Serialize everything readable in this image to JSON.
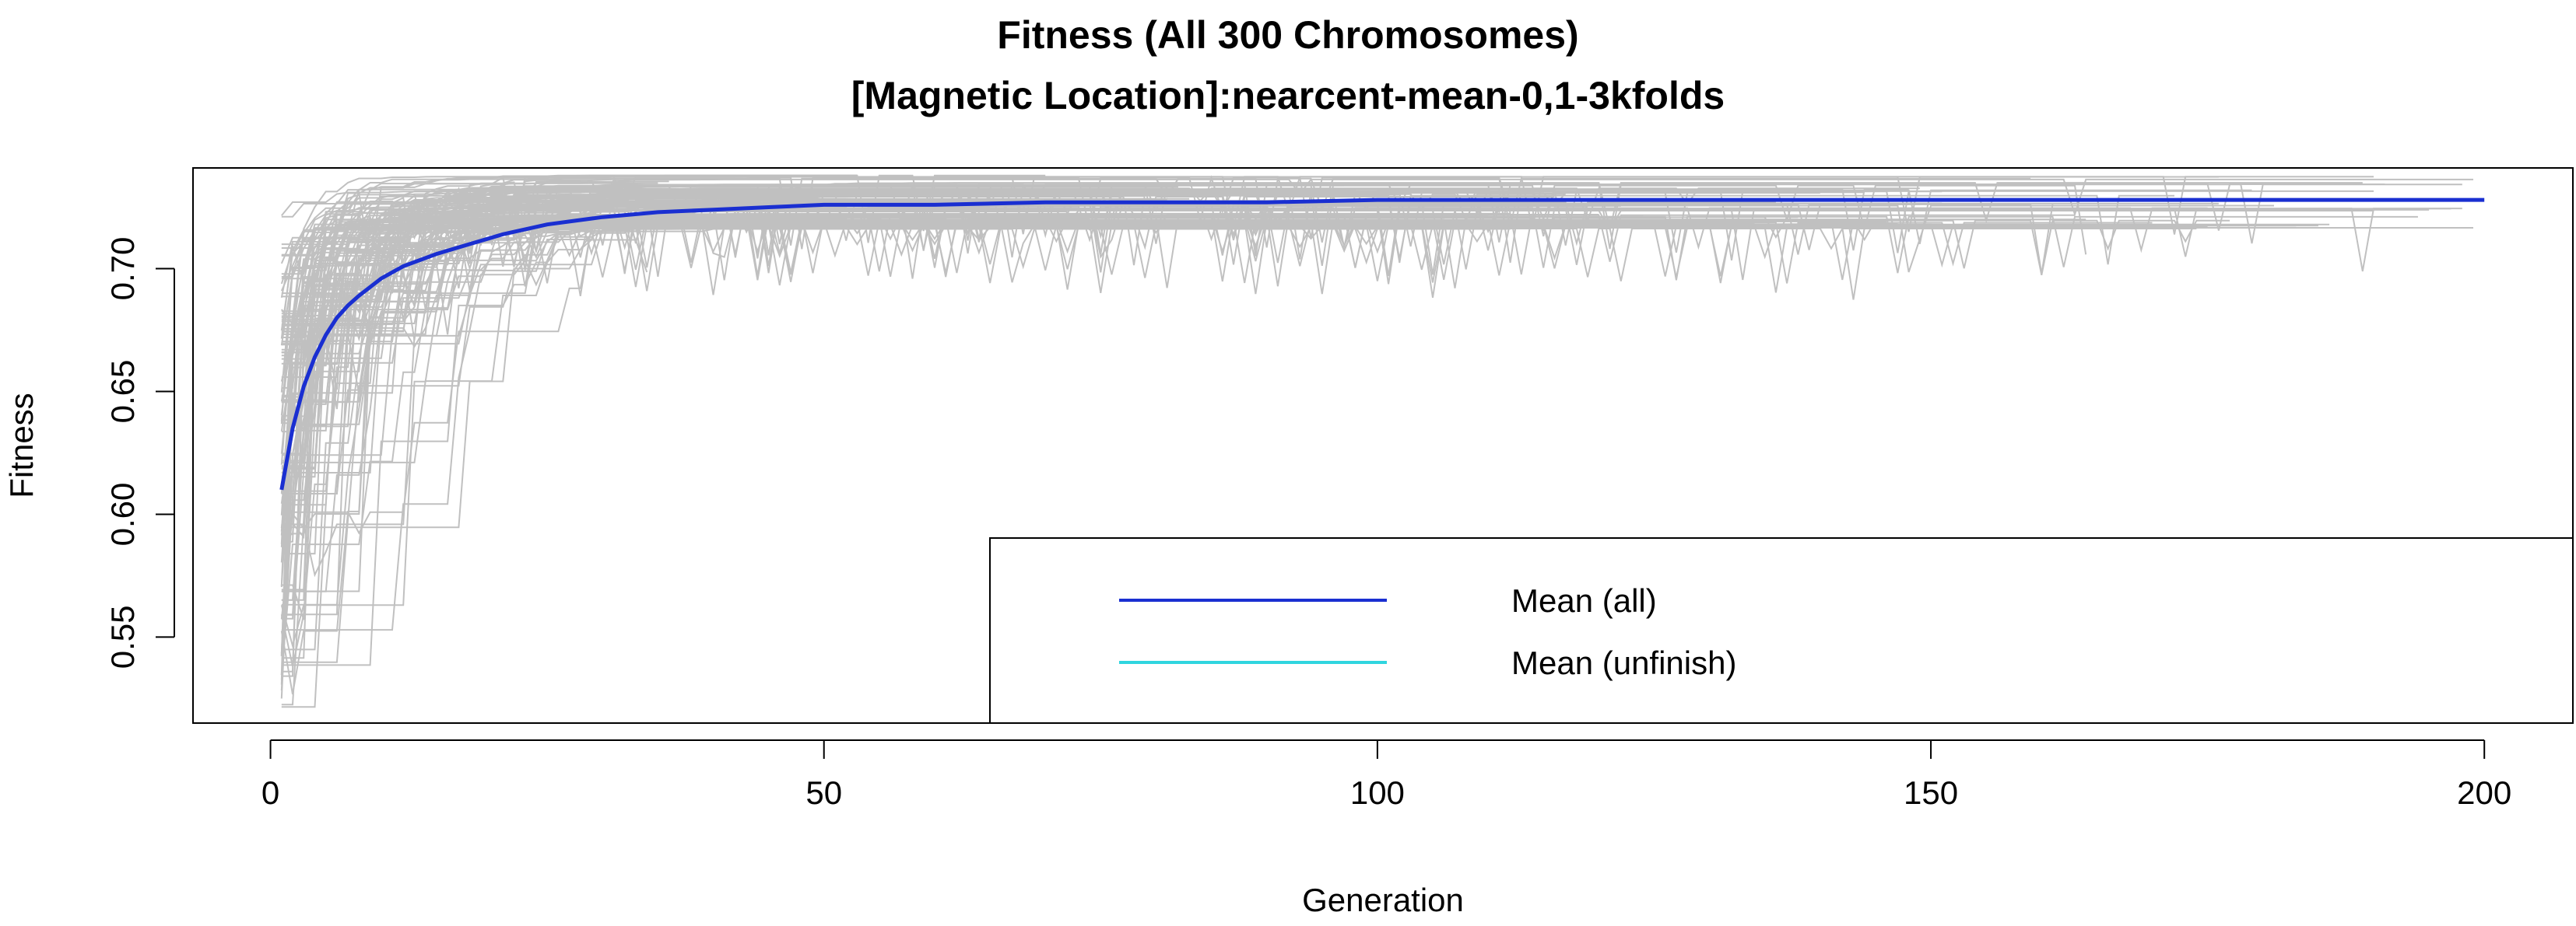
{
  "chart_data": {
    "type": "line",
    "title": "Fitness  (All 300 Chromosomes)",
    "subtitle": "[Magnetic Location]:nearcent-mean-0,1-3kfolds",
    "xlabel": "Generation",
    "ylabel": "Fitness",
    "xlim": [
      -7,
      208
    ],
    "ylim": [
      0.515,
      0.741
    ],
    "x_ticks": [
      0,
      50,
      100,
      150,
      200
    ],
    "x_tick_labels": [
      "0",
      "50",
      "100",
      "150",
      "200"
    ],
    "y_ticks": [
      0.55,
      0.6,
      0.65,
      0.7
    ],
    "y_tick_labels": [
      "0.55",
      "0.60",
      "0.65",
      "0.70"
    ],
    "grid": false,
    "legend_position": "bottom-right",
    "series": [
      {
        "name": "Mean (all)",
        "color": "#1a2fd1",
        "x": [
          1,
          2,
          3,
          4,
          5,
          6,
          7,
          8,
          10,
          12,
          15,
          18,
          21,
          25,
          30,
          35,
          40,
          45,
          50,
          55,
          60,
          70,
          80,
          90,
          100,
          120,
          150,
          170,
          200
        ],
        "y": [
          0.61,
          0.635,
          0.652,
          0.664,
          0.673,
          0.68,
          0.685,
          0.689,
          0.696,
          0.701,
          0.706,
          0.71,
          0.714,
          0.718,
          0.721,
          0.723,
          0.724,
          0.725,
          0.726,
          0.726,
          0.726,
          0.727,
          0.727,
          0.727,
          0.728,
          0.728,
          0.728,
          0.728,
          0.728
        ]
      },
      {
        "name": "Mean (unfinish)",
        "color": "#2fd5df",
        "x": [],
        "y": []
      }
    ],
    "background_series": {
      "name": "Individual chromosomes",
      "color": "#c0c0c0",
      "count": 300,
      "initial_range": [
        0.52,
        0.7
      ],
      "final_range": [
        0.716,
        0.738
      ]
    }
  }
}
